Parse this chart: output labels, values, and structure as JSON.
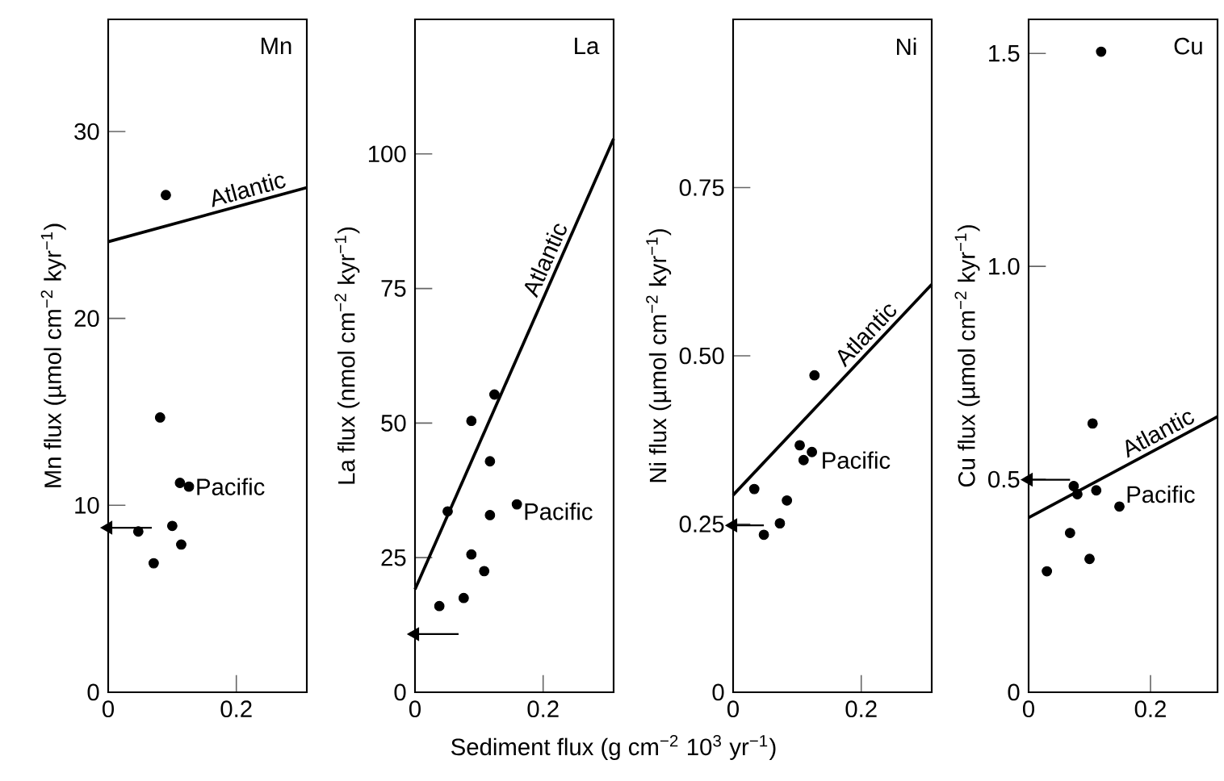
{
  "chart_data": [
    {
      "type": "scatter",
      "title": "Mn",
      "ylabel": "Mn flux (µmol cm$^{−2}$ kyr$^{−1}$)",
      "xlim": [
        0,
        0.31
      ],
      "ylim": [
        0,
        36
      ],
      "xticks": [
        0,
        0.2
      ],
      "yticks": [
        0,
        10,
        20,
        30
      ],
      "series": [
        {
          "name": "Atlantic",
          "type": "line",
          "color": "#000000",
          "x": [
            0,
            0.31
          ],
          "values": [
            24.1,
            27.0
          ]
        },
        {
          "name": "Pacific",
          "type": "scatter",
          "marker": "circle",
          "color": "#000000",
          "x": [
            0.09,
            0.081,
            0.112,
            0.126,
            0.1,
            0.047,
            0.114,
            0.071
          ],
          "values": [
            26.6,
            14.7,
            11.2,
            11.0,
            8.9,
            8.6,
            7.9,
            6.9
          ]
        },
        {
          "type": "line",
          "marker": "triangle",
          "color": "#000000",
          "x": [
            0.068,
            0
          ],
          "values": [
            8.8,
            8.8
          ]
        }
      ]
    },
    {
      "type": "scatter",
      "title": "La",
      "ylabel": "La flux (nmol cm$^{−2}$ kyr$^{−1}$)",
      "xlabel": "Sediment flux (g cm$^{−2}$ 10$^{3}$ yr$^{−1}$)",
      "xlim": [
        0,
        0.31
      ],
      "ylim": [
        0,
        125
      ],
      "xticks": [
        0,
        0.2
      ],
      "yticks": [
        0,
        25,
        50,
        75,
        100
      ],
      "series": [
        {
          "name": "Atlantic",
          "type": "line",
          "color": "#000000",
          "x": [
            0,
            0.31
          ],
          "values": [
            19.1,
            102.8
          ]
        },
        {
          "name": "Pacific",
          "type": "scatter",
          "marker": "circle",
          "color": "#000000",
          "x": [
            0.038,
            0.076,
            0.051,
            0.088,
            0.124,
            0.117,
            0.117,
            0.159,
            0.088,
            0.108
          ],
          "values": [
            16.0,
            17.5,
            33.6,
            50.4,
            55.3,
            42.9,
            32.9,
            34.9,
            25.6,
            22.5
          ]
        },
        {
          "type": "line",
          "marker": "triangle",
          "color": "#000000",
          "x": [
            0.068,
            0
          ],
          "values": [
            10.8,
            10.8
          ]
        }
      ]
    },
    {
      "type": "scatter",
      "title": "Ni",
      "ylabel": "Ni flux (µmol cm$^{−2}$ kyr$^{−1}$)",
      "xlim": [
        0,
        0.31
      ],
      "ylim": [
        0,
        1.0
      ],
      "xticks": [
        0,
        0.2
      ],
      "yticks": [
        0,
        {
          "value": 0.25,
          "label": "0.25"
        },
        {
          "value": 0.5,
          "label": "0.50"
        },
        {
          "value": 0.75,
          "label": "0.75"
        }
      ],
      "series": [
        {
          "name": "Atlantic",
          "type": "line",
          "color": "#000000",
          "x": [
            0,
            0.31
          ],
          "values": [
            0.293,
            0.606
          ]
        },
        {
          "name": "Pacific",
          "type": "scatter",
          "marker": "circle",
          "color": "#000000",
          "x": [
            0.127,
            0.033,
            0.084,
            0.104,
            0.11,
            0.123,
            0.073,
            0.048
          ],
          "values": [
            0.471,
            0.302,
            0.285,
            0.367,
            0.345,
            0.357,
            0.251,
            0.234
          ]
        },
        {
          "type": "line",
          "marker": "triangle",
          "color": "#000000",
          "x": [
            0.048,
            0
          ],
          "values": [
            0.248,
            0.248
          ]
        }
      ]
    },
    {
      "type": "scatter",
      "title": "Cu",
      "ylabel": "Cu flux (µmol cm$^{−2}$ kyr$^{−1}$)",
      "xlim": [
        0,
        0.31
      ],
      "ylim": [
        0,
        1.58
      ],
      "xticks": [
        0,
        0.2
      ],
      "yticks": [
        0,
        0.5,
        {
          "value": 1.0,
          "label": "1.0"
        },
        1.5
      ],
      "series": [
        {
          "name": "Atlantic",
          "type": "line",
          "color": "#000000",
          "x": [
            0,
            0.31
          ],
          "values": [
            0.41,
            0.647
          ]
        },
        {
          "name": "Pacific",
          "type": "scatter",
          "marker": "circle",
          "color": "#000000",
          "x": [
            0.119,
            0.105,
            0.074,
            0.08,
            0.111,
            0.149,
            0.068,
            0.1,
            0.03
          ],
          "values": [
            1.504,
            0.631,
            0.484,
            0.465,
            0.474,
            0.436,
            0.374,
            0.313,
            0.284
          ]
        },
        {
          "type": "line",
          "marker": "triangle",
          "color": "#000000",
          "x": [
            0.068,
            0
          ],
          "values": [
            0.499,
            0.499
          ]
        }
      ]
    }
  ]
}
